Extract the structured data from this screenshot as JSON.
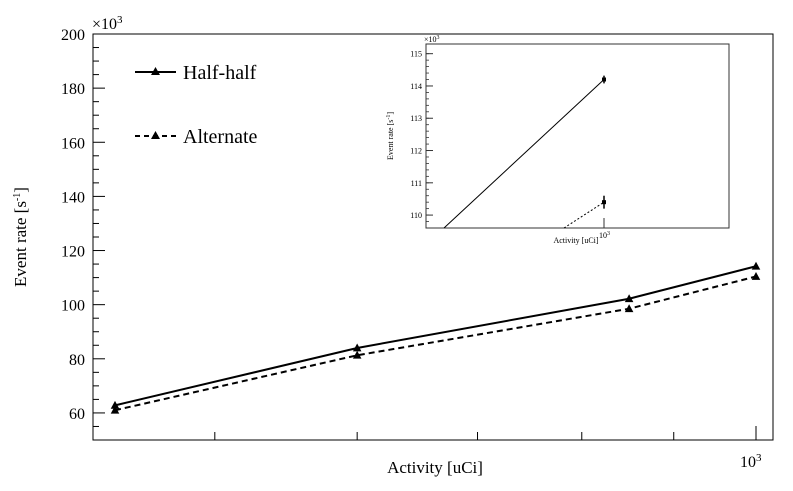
{
  "chart_data": [
    {
      "type": "line",
      "xlabel": "Activity [uCi]",
      "ylabel": "Event rate [s",
      "ylabel_sup": "-1",
      "ylabel_close": "]",
      "y_multiplier": "×10",
      "y_multiplier_exp": "3",
      "x_scale": "log",
      "x_tick_label": "10",
      "x_tick_label_exp": "3",
      "xlim": [
        420,
        1000
      ],
      "ylim": [
        50,
        200
      ],
      "y_ticks": [
        60,
        80,
        100,
        120,
        140,
        160,
        180,
        200
      ],
      "grid": false,
      "legend_position": "top-left",
      "x": [
        440,
        600,
        850,
        1000
      ],
      "series": [
        {
          "name": "Half-half",
          "style": "solid",
          "values": [
            62.8,
            84.0,
            102.2,
            114.2
          ]
        },
        {
          "name": "Alternate",
          "style": "dashed",
          "values": [
            61.0,
            81.3,
            98.5,
            110.4
          ]
        }
      ]
    },
    {
      "type": "line",
      "role": "inset",
      "xlabel": "Activity [uCi]",
      "ylabel": "Event rate [s",
      "ylabel_sup": "-1",
      "ylabel_close": "]",
      "y_multiplier": "×10",
      "y_multiplier_exp": "3",
      "x_tick_label": "10",
      "x_tick_label_exp": "3",
      "ylim": [
        109.6,
        115.3
      ],
      "y_ticks": [
        110,
        111,
        112,
        113,
        114,
        115
      ],
      "x": [
        960,
        1000
      ],
      "series": [
        {
          "name": "Half-half",
          "style": "solid",
          "values": [
            109.6,
            114.2
          ],
          "error": 0.12
        },
        {
          "name": "Alternate",
          "style": "dotted",
          "values": [
            109.6,
            110.4
          ],
          "error": 0.2
        }
      ]
    }
  ]
}
